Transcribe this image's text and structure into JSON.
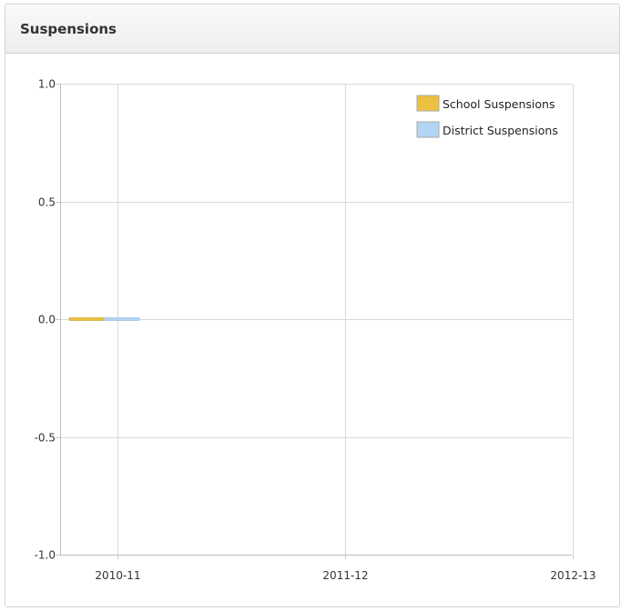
{
  "panel": {
    "title": "Suspensions"
  },
  "chart_data": {
    "type": "bar",
    "title": "",
    "xlabel": "",
    "ylabel": "",
    "categories": [
      "2010-11",
      "2011-12",
      "2012-13"
    ],
    "series": [
      {
        "name": "School Suspensions",
        "color": "#eec03f",
        "values": [
          0,
          null,
          null
        ]
      },
      {
        "name": "District Suspensions",
        "color": "#b3d5f5",
        "values": [
          0,
          null,
          null
        ]
      }
    ],
    "y_ticks": [
      "1.0",
      "0.5",
      "0.0",
      "-0.5",
      "-1.0"
    ],
    "ylim": [
      -1,
      1
    ],
    "grid": true,
    "legend": "top-right"
  }
}
